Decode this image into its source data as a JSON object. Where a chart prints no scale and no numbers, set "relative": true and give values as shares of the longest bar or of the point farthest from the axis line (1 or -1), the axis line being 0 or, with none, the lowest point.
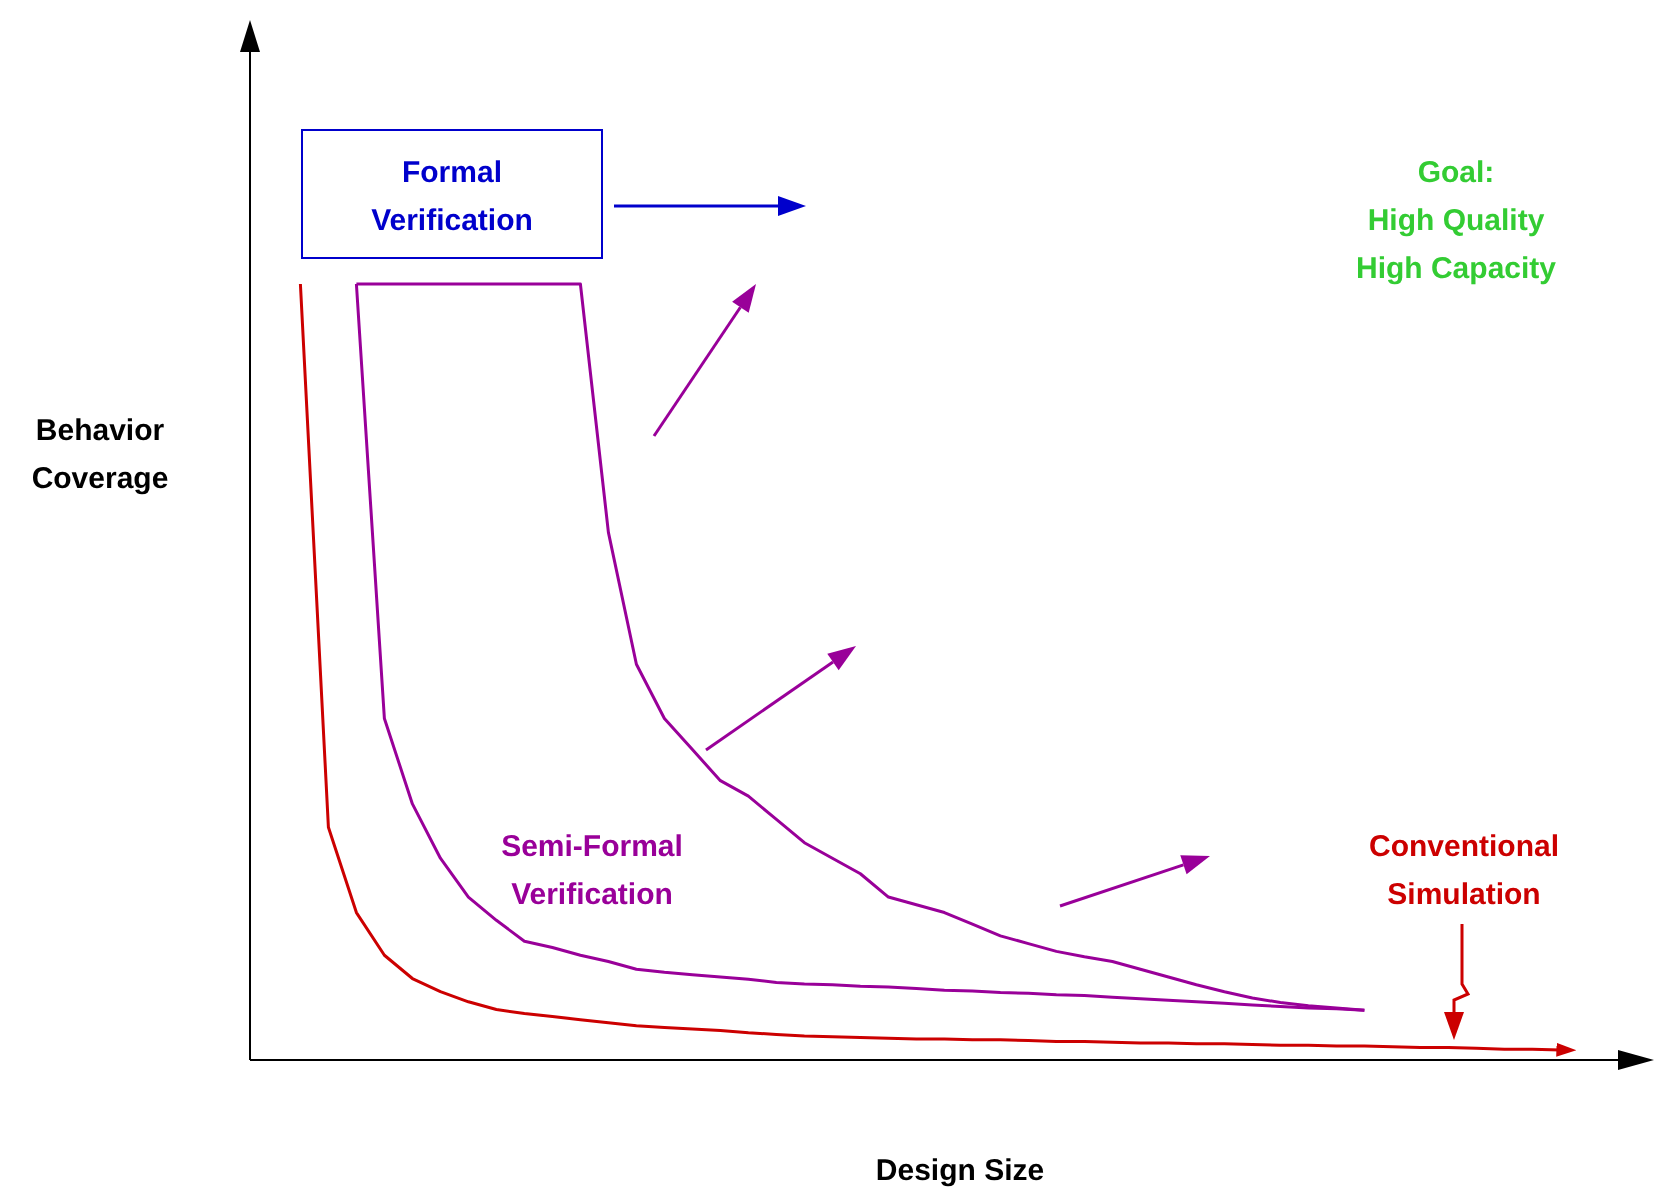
{
  "chart_data": {
    "type": "line",
    "relative": true,
    "xlabel": "Design Size",
    "ylabel": "Behavior\nCoverage",
    "categories": [
      null,
      null,
      null,
      null,
      null,
      null,
      null,
      null,
      null,
      null,
      null,
      null,
      null,
      null,
      null,
      null,
      null,
      null,
      null,
      null,
      null,
      null,
      null,
      null,
      null,
      null,
      null,
      null,
      null,
      null,
      null,
      null,
      null,
      null,
      null,
      null,
      null,
      null,
      null,
      null,
      null,
      null,
      null,
      null,
      null,
      null,
      null,
      null,
      null,
      null
    ],
    "series": [
      {
        "name": "Conventional\nSimulation",
        "color": "#cc0000",
        "values": [
          null,
          1,
          0.3,
          0.19,
          0.135,
          0.105,
          0.088,
          0.075,
          0.065,
          0.06,
          0.056,
          0.052,
          0.048,
          0.044,
          0.042,
          0.04,
          0.038,
          0.035,
          0.033,
          0.031,
          0.03,
          0.029,
          0.028,
          0.027,
          0.027,
          0.026,
          0.026,
          0.025,
          0.024,
          0.024,
          0.023,
          0.022,
          0.022,
          0.021,
          0.021,
          0.02,
          0.019,
          0.019,
          0.018,
          0.018,
          0.017,
          0.016,
          0.016,
          0.015,
          0.014,
          0.014,
          0.013,
          null,
          null,
          null
        ]
      },
      {
        "name": "Semi-Formal\nVerification",
        "color": "#990099",
        "values": [
          null,
          null,
          null,
          1,
          1,
          1,
          1,
          1,
          1,
          1,
          1,
          1,
          0.68,
          0.51,
          0.44,
          0.4,
          0.36,
          0.34,
          0.31,
          0.28,
          0.26,
          0.24,
          0.21,
          0.2,
          0.19,
          0.175,
          0.16,
          0.15,
          0.14,
          0.133,
          0.127,
          0.117,
          0.107,
          0.097,
          0.088,
          0.08,
          0.074,
          0.07,
          0.067,
          0.064,
          null,
          null,
          null,
          null,
          null,
          null,
          null,
          null,
          null,
          null
        ]
      },
      {
        "color": "#990099",
        "values": [
          null,
          null,
          null,
          1,
          0.44,
          0.33,
          0.26,
          0.21,
          0.18,
          0.153,
          0.145,
          0.135,
          0.127,
          0.117,
          0.113,
          0.11,
          0.107,
          0.104,
          0.1,
          0.098,
          0.097,
          0.095,
          0.094,
          0.092,
          0.09,
          0.089,
          0.087,
          0.086,
          0.084,
          0.083,
          0.081,
          0.079,
          0.077,
          0.075,
          0.073,
          0.071,
          0.069,
          0.067,
          0.066,
          0.064,
          null,
          null,
          null,
          null,
          null,
          null,
          null,
          null,
          null,
          null
        ]
      }
    ],
    "annotations": [
      "Formal\nVerification",
      "Goal:\nHigh Quality\nHigh Capacity"
    ]
  }
}
